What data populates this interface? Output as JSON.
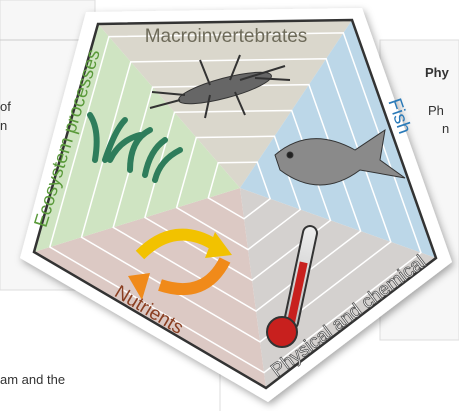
{
  "background": {
    "heading": "Phy",
    "line1": "Ph",
    "line2": "n",
    "left1": "of",
    "left2": "n",
    "bottom": "am and the"
  },
  "segments": [
    {
      "label": "Macroinvertebrates"
    },
    {
      "label": "Fish"
    },
    {
      "label": "Physical and chemical"
    },
    {
      "label": "Nutrients"
    },
    {
      "label": "Ecosystem processes"
    }
  ]
}
